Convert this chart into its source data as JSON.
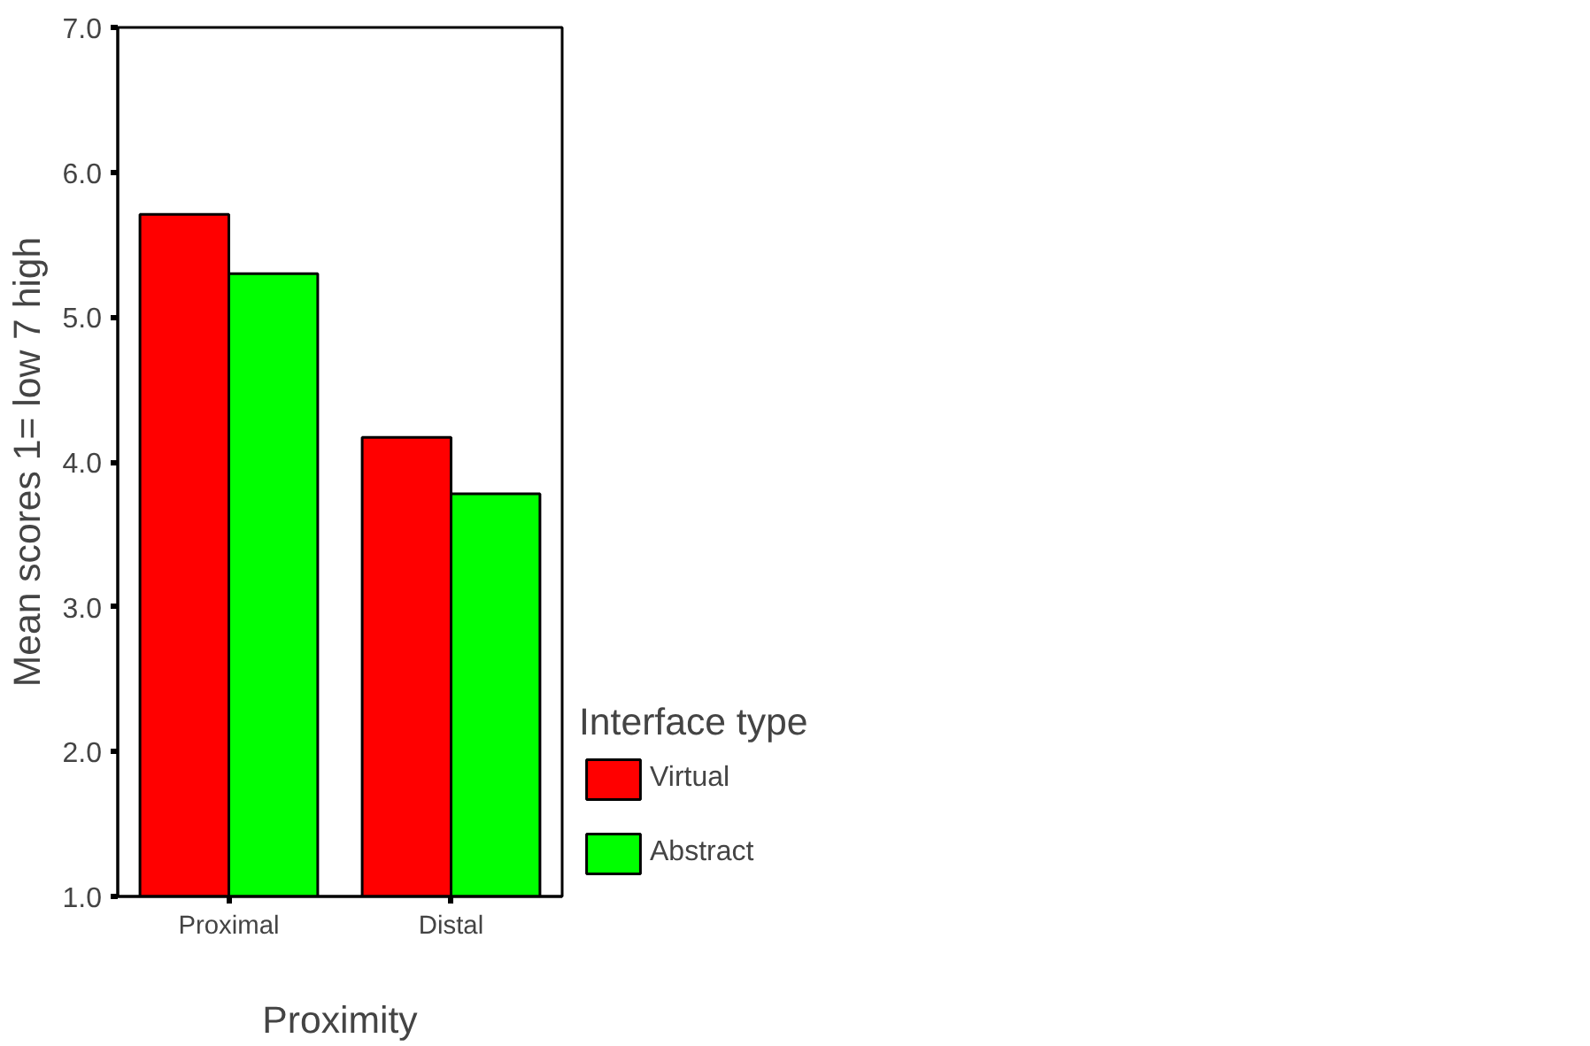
{
  "chart_data": {
    "type": "bar",
    "xlabel": "Proximity",
    "ylabel": "Mean scores 1= low 7 high",
    "legend_title": "Interface type",
    "categories": [
      "Proximal",
      "Distal"
    ],
    "series": [
      {
        "name": "Virtual",
        "color": "#ff0000",
        "values": [
          5.71,
          4.17
        ]
      },
      {
        "name": "Abstract",
        "color": "#00ff00",
        "values": [
          5.3,
          3.78
        ]
      }
    ],
    "ylim": [
      1,
      7
    ],
    "yticks": [
      {
        "value": 1,
        "label": "1.0"
      },
      {
        "value": 2,
        "label": "2.0"
      },
      {
        "value": 3,
        "label": "3.0"
      },
      {
        "value": 4,
        "label": "4.0"
      },
      {
        "value": 5,
        "label": "5.0"
      },
      {
        "value": 6,
        "label": "6.0"
      },
      {
        "value": 7,
        "label": "7.0"
      }
    ],
    "grid": false,
    "legend": "right"
  }
}
